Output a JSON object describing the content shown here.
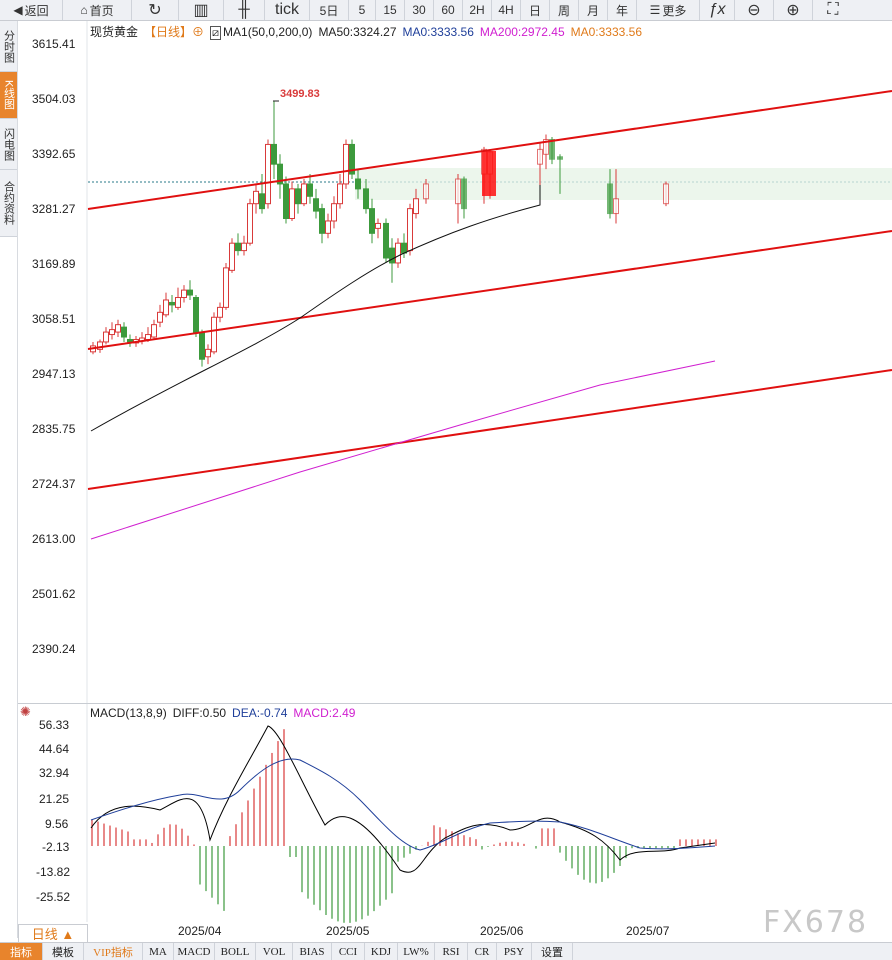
{
  "toolbar": {
    "back": "返回",
    "home": "首页",
    "tick": "tick",
    "periods": [
      "5日",
      "5",
      "15",
      "30",
      "60",
      "2H",
      "4H",
      "日",
      "周",
      "月",
      "年"
    ],
    "more": "更多",
    "fx": "ƒx"
  },
  "side_tabs": [
    "分时图",
    "K线图",
    "闪电图",
    "合约资料"
  ],
  "legend": {
    "symbol": "现货黄金",
    "period": "【日线】",
    "ma1": "MA1(50,0,200,0)",
    "ma50": "MA50:3324.27",
    "ma0": "MA0:3333.56",
    "ma200": "MA200:2972.45",
    "ma0b": "MA0:3333.56"
  },
  "price_axis": [
    "3615.41",
    "3504.03",
    "3392.65",
    "3281.27",
    "3169.89",
    "3058.51",
    "2947.13",
    "2835.75",
    "2724.37",
    "2613.00",
    "2501.62",
    "2390.24"
  ],
  "high_label": "3499.83",
  "macd_legend": {
    "name": "MACD(13,8,9)",
    "diff": "DIFF:0.50",
    "dea": "DEA:-0.74",
    "macd": "MACD:2.49"
  },
  "macd_axis": [
    "56.33",
    "44.64",
    "32.94",
    "21.25",
    "9.56",
    "-2.13",
    "-13.82",
    "-25.52"
  ],
  "x_axis": [
    "2025/04",
    "2025/05",
    "2025/06",
    "2025/07"
  ],
  "period_button": "日线 ▲",
  "watermark": "FX678",
  "bottom_tabs": [
    "指标",
    "模板",
    "VIP指标",
    "MA",
    "MACD",
    "BOLL",
    "VOL",
    "BIAS",
    "CCI",
    "KDJ",
    "LW%",
    "RSI",
    "CR",
    "PSY",
    "设置"
  ],
  "colors": {
    "up": "#d93a3a",
    "down": "#3c9a3c",
    "trend": "#e01010",
    "ma50": "#111111",
    "ma200": "#d020d0",
    "accent": "#e8842c"
  }
}
